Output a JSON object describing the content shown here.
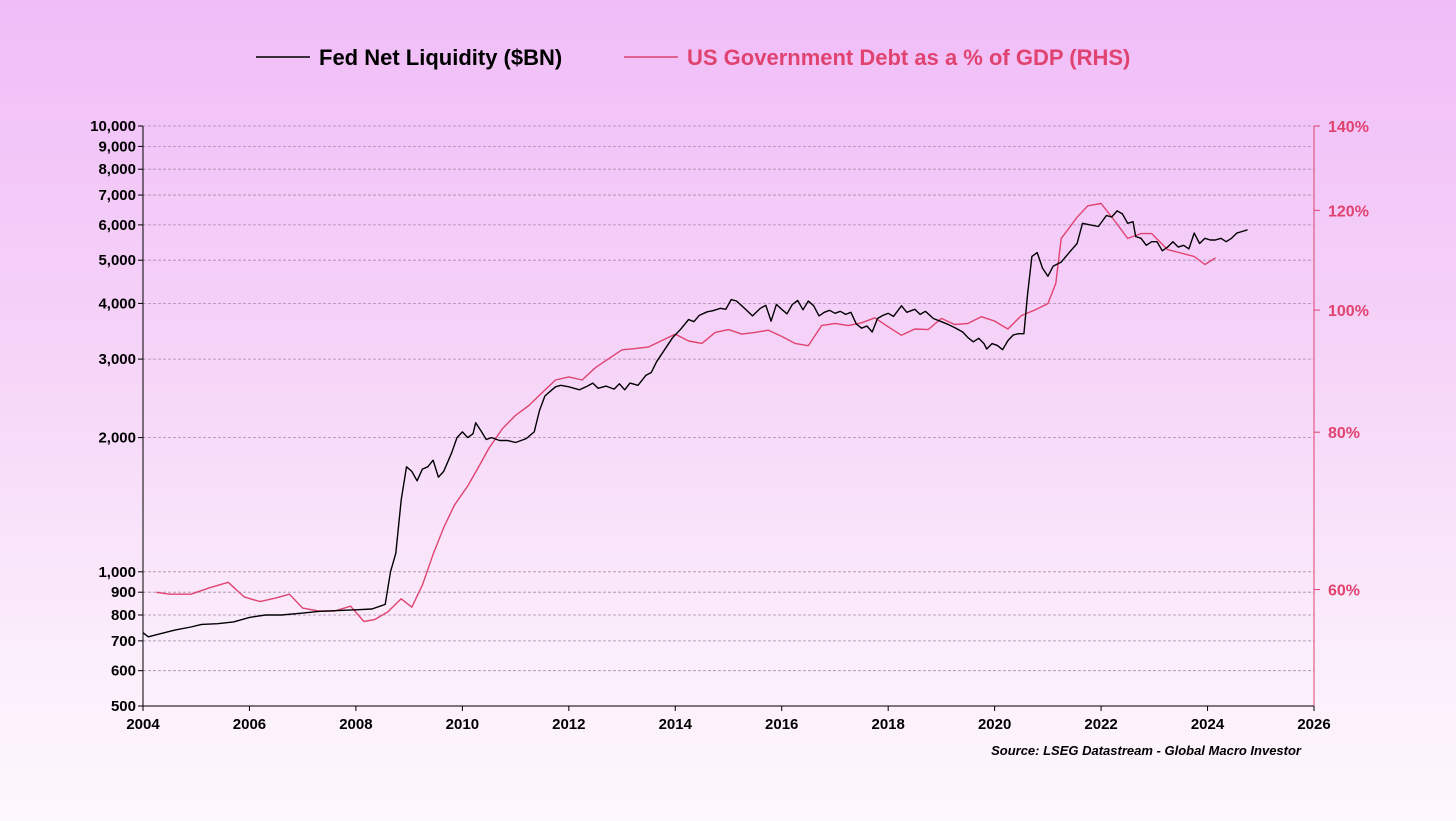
{
  "colors": {
    "liquidity": "#000000",
    "debt": "#e0436f",
    "grid": "#a98aa8"
  },
  "legend": [
    {
      "label": "Fed Net Liquidity ($BN)",
      "color": "#000000"
    },
    {
      "label": "US Government Debt as a % of GDP (RHS)",
      "color": "#e0436f"
    }
  ],
  "source": "Source: LSEG Datastream - Global Macro Investor",
  "chart_data": {
    "type": "line",
    "title": "",
    "legend_position": "top-center",
    "x_axis": {
      "range": [
        2004,
        2026
      ],
      "ticks": [
        "2004",
        "2006",
        "2008",
        "2010",
        "2012",
        "2014",
        "2016",
        "2018",
        "2020",
        "2022",
        "2024",
        "2026"
      ]
    },
    "y_left": {
      "scale": "log",
      "range": [
        500,
        10000
      ],
      "grid": true,
      "ticks": [
        {
          "value": 500,
          "label": "500"
        },
        {
          "value": 600,
          "label": "600"
        },
        {
          "value": 700,
          "label": "700"
        },
        {
          "value": 800,
          "label": "800"
        },
        {
          "value": 900,
          "label": "900"
        },
        {
          "value": 1000,
          "label": "1,000"
        },
        {
          "value": 2000,
          "label": "2,000"
        },
        {
          "value": 3000,
          "label": "3,000"
        },
        {
          "value": 4000,
          "label": "4,000"
        },
        {
          "value": 5000,
          "label": "5,000"
        },
        {
          "value": 6000,
          "label": "6,000"
        },
        {
          "value": 7000,
          "label": "7,000"
        },
        {
          "value": 8000,
          "label": "8,000"
        },
        {
          "value": 9000,
          "label": "9,000"
        },
        {
          "value": 10000,
          "label": "10,000"
        }
      ]
    },
    "y_right": {
      "scale": "log",
      "range": [
        48.5,
        140
      ],
      "ticks": [
        {
          "value": 60,
          "label": "60%"
        },
        {
          "value": 80,
          "label": "80%"
        },
        {
          "value": 100,
          "label": "100%"
        },
        {
          "value": 120,
          "label": "120%"
        },
        {
          "value": 140,
          "label": "140%"
        }
      ]
    },
    "series": [
      {
        "name": "Fed Net Liquidity ($BN)",
        "axis": "left",
        "color": "#000000",
        "points": [
          [
            2004.0,
            730
          ],
          [
            2004.1,
            715
          ],
          [
            2004.3,
            725
          ],
          [
            2004.6,
            740
          ],
          [
            2004.9,
            752
          ],
          [
            2005.1,
            762
          ],
          [
            2005.4,
            765
          ],
          [
            2005.7,
            772
          ],
          [
            2006.0,
            790
          ],
          [
            2006.3,
            800
          ],
          [
            2006.6,
            800
          ],
          [
            2007.0,
            808
          ],
          [
            2007.3,
            815
          ],
          [
            2007.6,
            818
          ],
          [
            2008.0,
            822
          ],
          [
            2008.3,
            825
          ],
          [
            2008.55,
            845
          ],
          [
            2008.65,
            1000
          ],
          [
            2008.75,
            1100
          ],
          [
            2008.85,
            1450
          ],
          [
            2008.95,
            1720
          ],
          [
            2009.05,
            1680
          ],
          [
            2009.15,
            1600
          ],
          [
            2009.25,
            1700
          ],
          [
            2009.35,
            1720
          ],
          [
            2009.45,
            1780
          ],
          [
            2009.55,
            1630
          ],
          [
            2009.65,
            1680
          ],
          [
            2009.8,
            1850
          ],
          [
            2009.9,
            2000
          ],
          [
            2010.0,
            2060
          ],
          [
            2010.1,
            2000
          ],
          [
            2010.2,
            2040
          ],
          [
            2010.25,
            2160
          ],
          [
            2010.35,
            2070
          ],
          [
            2010.45,
            1980
          ],
          [
            2010.55,
            2000
          ],
          [
            2010.7,
            1970
          ],
          [
            2010.85,
            1970
          ],
          [
            2011.0,
            1950
          ],
          [
            2011.2,
            1990
          ],
          [
            2011.35,
            2060
          ],
          [
            2011.45,
            2300
          ],
          [
            2011.55,
            2480
          ],
          [
            2011.65,
            2540
          ],
          [
            2011.75,
            2600
          ],
          [
            2011.85,
            2620
          ],
          [
            2012.0,
            2600
          ],
          [
            2012.2,
            2560
          ],
          [
            2012.35,
            2610
          ],
          [
            2012.45,
            2650
          ],
          [
            2012.55,
            2580
          ],
          [
            2012.7,
            2610
          ],
          [
            2012.85,
            2570
          ],
          [
            2012.95,
            2640
          ],
          [
            2013.05,
            2560
          ],
          [
            2013.15,
            2650
          ],
          [
            2013.3,
            2620
          ],
          [
            2013.45,
            2760
          ],
          [
            2013.55,
            2800
          ],
          [
            2013.65,
            2960
          ],
          [
            2013.8,
            3150
          ],
          [
            2013.95,
            3350
          ],
          [
            2014.1,
            3500
          ],
          [
            2014.25,
            3680
          ],
          [
            2014.35,
            3640
          ],
          [
            2014.45,
            3760
          ],
          [
            2014.6,
            3830
          ],
          [
            2014.7,
            3850
          ],
          [
            2014.85,
            3900
          ],
          [
            2014.95,
            3880
          ],
          [
            2015.05,
            4080
          ],
          [
            2015.15,
            4050
          ],
          [
            2015.25,
            3950
          ],
          [
            2015.35,
            3850
          ],
          [
            2015.45,
            3750
          ],
          [
            2015.6,
            3900
          ],
          [
            2015.7,
            3960
          ],
          [
            2015.8,
            3650
          ],
          [
            2015.9,
            3980
          ],
          [
            2016.0,
            3880
          ],
          [
            2016.1,
            3790
          ],
          [
            2016.2,
            3980
          ],
          [
            2016.3,
            4060
          ],
          [
            2016.4,
            3870
          ],
          [
            2016.5,
            4050
          ],
          [
            2016.6,
            3950
          ],
          [
            2016.7,
            3750
          ],
          [
            2016.8,
            3820
          ],
          [
            2016.9,
            3860
          ],
          [
            2017.0,
            3800
          ],
          [
            2017.1,
            3840
          ],
          [
            2017.2,
            3780
          ],
          [
            2017.3,
            3820
          ],
          [
            2017.4,
            3600
          ],
          [
            2017.5,
            3520
          ],
          [
            2017.6,
            3560
          ],
          [
            2017.7,
            3450
          ],
          [
            2017.8,
            3700
          ],
          [
            2017.9,
            3760
          ],
          [
            2018.0,
            3800
          ],
          [
            2018.1,
            3740
          ],
          [
            2018.25,
            3950
          ],
          [
            2018.35,
            3820
          ],
          [
            2018.5,
            3880
          ],
          [
            2018.6,
            3780
          ],
          [
            2018.7,
            3840
          ],
          [
            2018.85,
            3700
          ],
          [
            2019.0,
            3640
          ],
          [
            2019.1,
            3600
          ],
          [
            2019.25,
            3530
          ],
          [
            2019.4,
            3450
          ],
          [
            2019.5,
            3350
          ],
          [
            2019.6,
            3280
          ],
          [
            2019.7,
            3340
          ],
          [
            2019.8,
            3250
          ],
          [
            2019.85,
            3160
          ],
          [
            2019.95,
            3250
          ],
          [
            2020.05,
            3220
          ],
          [
            2020.15,
            3150
          ],
          [
            2020.25,
            3300
          ],
          [
            2020.35,
            3400
          ],
          [
            2020.45,
            3420
          ],
          [
            2020.55,
            3420
          ],
          [
            2020.62,
            4200
          ],
          [
            2020.7,
            5100
          ],
          [
            2020.8,
            5200
          ],
          [
            2020.9,
            4800
          ],
          [
            2021.0,
            4600
          ],
          [
            2021.1,
            4850
          ],
          [
            2021.25,
            4950
          ],
          [
            2021.4,
            5200
          ],
          [
            2021.55,
            5450
          ],
          [
            2021.65,
            6050
          ],
          [
            2021.8,
            6000
          ],
          [
            2021.95,
            5950
          ],
          [
            2022.1,
            6300
          ],
          [
            2022.2,
            6250
          ],
          [
            2022.3,
            6450
          ],
          [
            2022.4,
            6350
          ],
          [
            2022.5,
            6050
          ],
          [
            2022.6,
            6100
          ],
          [
            2022.65,
            5650
          ],
          [
            2022.75,
            5600
          ],
          [
            2022.85,
            5400
          ],
          [
            2022.95,
            5500
          ],
          [
            2023.05,
            5500
          ],
          [
            2023.15,
            5250
          ],
          [
            2023.25,
            5350
          ],
          [
            2023.35,
            5500
          ],
          [
            2023.45,
            5350
          ],
          [
            2023.55,
            5400
          ],
          [
            2023.65,
            5300
          ],
          [
            2023.75,
            5750
          ],
          [
            2023.85,
            5450
          ],
          [
            2023.95,
            5600
          ],
          [
            2024.05,
            5550
          ],
          [
            2024.15,
            5550
          ],
          [
            2024.25,
            5600
          ],
          [
            2024.35,
            5500
          ],
          [
            2024.45,
            5600
          ],
          [
            2024.55,
            5750
          ],
          [
            2024.65,
            5800
          ],
          [
            2024.75,
            5850
          ]
        ]
      },
      {
        "name": "US Government Debt as a % of GDP (RHS)",
        "axis": "right",
        "color": "#e0436f",
        "points": [
          [
            2004.25,
            59.7
          ],
          [
            2004.5,
            59.5
          ],
          [
            2004.9,
            59.5
          ],
          [
            2005.25,
            60.2
          ],
          [
            2005.6,
            60.8
          ],
          [
            2005.9,
            59.2
          ],
          [
            2006.2,
            58.7
          ],
          [
            2006.5,
            59.1
          ],
          [
            2006.75,
            59.5
          ],
          [
            2007.0,
            58.0
          ],
          [
            2007.3,
            57.7
          ],
          [
            2007.6,
            57.7
          ],
          [
            2007.9,
            58.2
          ],
          [
            2008.15,
            56.6
          ],
          [
            2008.35,
            56.8
          ],
          [
            2008.6,
            57.6
          ],
          [
            2008.85,
            59.0
          ],
          [
            2009.05,
            58.1
          ],
          [
            2009.25,
            60.5
          ],
          [
            2009.45,
            64.0
          ],
          [
            2009.65,
            67.2
          ],
          [
            2009.85,
            70.0
          ],
          [
            2010.1,
            72.5
          ],
          [
            2010.3,
            75.0
          ],
          [
            2010.5,
            77.7
          ],
          [
            2010.75,
            80.5
          ],
          [
            2011.0,
            82.5
          ],
          [
            2011.25,
            84.0
          ],
          [
            2011.5,
            86.0
          ],
          [
            2011.75,
            88.0
          ],
          [
            2012.0,
            88.5
          ],
          [
            2012.25,
            88.0
          ],
          [
            2012.5,
            90.0
          ],
          [
            2012.75,
            91.5
          ],
          [
            2013.0,
            93.0
          ],
          [
            2013.25,
            93.2
          ],
          [
            2013.5,
            93.5
          ],
          [
            2013.75,
            94.6
          ],
          [
            2014.0,
            95.7
          ],
          [
            2014.25,
            94.5
          ],
          [
            2014.5,
            94.1
          ],
          [
            2014.75,
            96.0
          ],
          [
            2015.0,
            96.5
          ],
          [
            2015.25,
            95.7
          ],
          [
            2015.5,
            96.0
          ],
          [
            2015.75,
            96.4
          ],
          [
            2016.0,
            95.3
          ],
          [
            2016.25,
            94.1
          ],
          [
            2016.5,
            93.7
          ],
          [
            2016.75,
            97.2
          ],
          [
            2017.0,
            97.6
          ],
          [
            2017.25,
            97.2
          ],
          [
            2017.5,
            97.7
          ],
          [
            2017.75,
            98.6
          ],
          [
            2018.0,
            97.0
          ],
          [
            2018.25,
            95.5
          ],
          [
            2018.5,
            96.6
          ],
          [
            2018.75,
            96.5
          ],
          [
            2019.0,
            98.5
          ],
          [
            2019.25,
            97.4
          ],
          [
            2019.5,
            97.6
          ],
          [
            2019.75,
            98.8
          ],
          [
            2020.0,
            98.0
          ],
          [
            2020.25,
            96.6
          ],
          [
            2020.5,
            99.0
          ],
          [
            2020.75,
            100.0
          ],
          [
            2021.0,
            101.2
          ],
          [
            2021.15,
            105.0
          ],
          [
            2021.25,
            114.0
          ],
          [
            2021.4,
            116.2
          ],
          [
            2021.55,
            118.5
          ],
          [
            2021.75,
            121.0
          ],
          [
            2022.0,
            121.5
          ],
          [
            2022.25,
            117.8
          ],
          [
            2022.5,
            114.0
          ],
          [
            2022.75,
            115.0
          ],
          [
            2022.95,
            115.0
          ],
          [
            2023.25,
            111.7
          ],
          [
            2023.5,
            111.0
          ],
          [
            2023.75,
            110.3
          ],
          [
            2023.95,
            108.7
          ],
          [
            2024.15,
            110.0
          ]
        ]
      }
    ]
  }
}
